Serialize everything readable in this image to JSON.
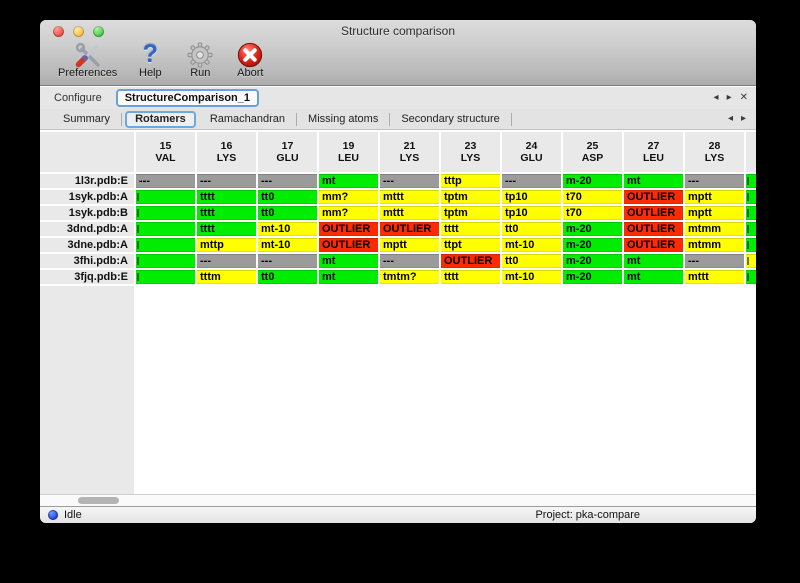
{
  "window": {
    "title": "Structure comparison"
  },
  "toolbar": {
    "items": [
      {
        "label": "Preferences",
        "icon": "tools-icon"
      },
      {
        "label": "Help",
        "icon": "question-icon"
      },
      {
        "label": "Run",
        "icon": "gear-icon"
      },
      {
        "label": "Abort",
        "icon": "stop-x-icon"
      }
    ]
  },
  "configure": {
    "label": "Configure",
    "tab_label": "StructureComparison_1"
  },
  "tabs": {
    "items": [
      "Summary",
      "Rotamers",
      "Ramachandran",
      "Missing atoms",
      "Secondary structure"
    ],
    "selected_index": 1
  },
  "icons": {
    "prev": "◂",
    "next": "▸",
    "close": "✕",
    "help_glyph": "?"
  },
  "colors": {
    "green": "#00EC00",
    "yellow": "#FFFF00",
    "red": "#FF2B00",
    "gray": "#9B9B9B",
    "accent_blue": "#67A1DC"
  },
  "table": {
    "columns": [
      {
        "num": "15",
        "res": "VAL"
      },
      {
        "num": "16",
        "res": "LYS"
      },
      {
        "num": "17",
        "res": "GLU"
      },
      {
        "num": "19",
        "res": "LEU"
      },
      {
        "num": "21",
        "res": "LYS"
      },
      {
        "num": "23",
        "res": "LYS"
      },
      {
        "num": "24",
        "res": "GLU"
      },
      {
        "num": "25",
        "res": "ASP"
      },
      {
        "num": "27",
        "res": "LEU"
      },
      {
        "num": "28",
        "res": "LYS"
      }
    ],
    "rows": [
      {
        "label": "1l3r.pdb:E",
        "cells": [
          {
            "t": "---",
            "c": "gray"
          },
          {
            "t": "---",
            "c": "gray"
          },
          {
            "t": "---",
            "c": "gray"
          },
          {
            "t": "mt",
            "c": "green"
          },
          {
            "t": "---",
            "c": "gray"
          },
          {
            "t": "tttp",
            "c": "yellow"
          },
          {
            "t": "---",
            "c": "gray"
          },
          {
            "t": "m-20",
            "c": "green"
          },
          {
            "t": "mt",
            "c": "green"
          },
          {
            "t": "---",
            "c": "gray"
          }
        ],
        "sliver": "green"
      },
      {
        "label": "1syk.pdb:A",
        "cells": [
          {
            "t": "",
            "c": "green",
            "clip": true
          },
          {
            "t": "tttt",
            "c": "green"
          },
          {
            "t": "tt0",
            "c": "green"
          },
          {
            "t": "mm?",
            "c": "yellow"
          },
          {
            "t": "mttt",
            "c": "yellow"
          },
          {
            "t": "tptm",
            "c": "yellow"
          },
          {
            "t": "tp10",
            "c": "yellow"
          },
          {
            "t": "t70",
            "c": "yellow"
          },
          {
            "t": "OUTLIER",
            "c": "red"
          },
          {
            "t": "mptt",
            "c": "yellow"
          }
        ],
        "sliver": "green"
      },
      {
        "label": "1syk.pdb:B",
        "cells": [
          {
            "t": "",
            "c": "green",
            "clip": true
          },
          {
            "t": "tttt",
            "c": "green"
          },
          {
            "t": "tt0",
            "c": "green"
          },
          {
            "t": "mm?",
            "c": "yellow"
          },
          {
            "t": "mttt",
            "c": "yellow"
          },
          {
            "t": "tptm",
            "c": "yellow"
          },
          {
            "t": "tp10",
            "c": "yellow"
          },
          {
            "t": "t70",
            "c": "yellow"
          },
          {
            "t": "OUTLIER",
            "c": "red"
          },
          {
            "t": "mptt",
            "c": "yellow"
          }
        ],
        "sliver": "green"
      },
      {
        "label": "3dnd.pdb:A",
        "cells": [
          {
            "t": "",
            "c": "green",
            "clip": true
          },
          {
            "t": "tttt",
            "c": "green"
          },
          {
            "t": "mt-10",
            "c": "yellow"
          },
          {
            "t": "OUTLIER",
            "c": "red"
          },
          {
            "t": "OUTLIER",
            "c": "red"
          },
          {
            "t": "tttt",
            "c": "yellow"
          },
          {
            "t": "tt0",
            "c": "yellow"
          },
          {
            "t": "m-20",
            "c": "green"
          },
          {
            "t": "OUTLIER",
            "c": "red"
          },
          {
            "t": "mtmm",
            "c": "yellow"
          }
        ],
        "sliver": "green"
      },
      {
        "label": "3dne.pdb:A",
        "cells": [
          {
            "t": "",
            "c": "green",
            "clip": true
          },
          {
            "t": "mttp",
            "c": "yellow"
          },
          {
            "t": "mt-10",
            "c": "yellow"
          },
          {
            "t": "OUTLIER",
            "c": "red"
          },
          {
            "t": "mptt",
            "c": "yellow"
          },
          {
            "t": "ttpt",
            "c": "yellow"
          },
          {
            "t": "mt-10",
            "c": "yellow"
          },
          {
            "t": "m-20",
            "c": "green"
          },
          {
            "t": "OUTLIER",
            "c": "red"
          },
          {
            "t": "mtmm",
            "c": "yellow"
          }
        ],
        "sliver": "green"
      },
      {
        "label": "3fhi.pdb:A",
        "cells": [
          {
            "t": "",
            "c": "green",
            "clip": true
          },
          {
            "t": "---",
            "c": "gray"
          },
          {
            "t": "---",
            "c": "gray"
          },
          {
            "t": "mt",
            "c": "green"
          },
          {
            "t": "---",
            "c": "gray"
          },
          {
            "t": "OUTLIER",
            "c": "red"
          },
          {
            "t": "tt0",
            "c": "yellow"
          },
          {
            "t": "m-20",
            "c": "green"
          },
          {
            "t": "mt",
            "c": "green"
          },
          {
            "t": "---",
            "c": "gray"
          }
        ],
        "sliver": "yellow"
      },
      {
        "label": "3fjq.pdb:E",
        "cells": [
          {
            "t": "",
            "c": "green",
            "clip": true
          },
          {
            "t": "tttm",
            "c": "yellow"
          },
          {
            "t": "tt0",
            "c": "green"
          },
          {
            "t": "mt",
            "c": "green"
          },
          {
            "t": "tmtm?",
            "c": "yellow"
          },
          {
            "t": "tttt",
            "c": "yellow"
          },
          {
            "t": "mt-10",
            "c": "yellow"
          },
          {
            "t": "m-20",
            "c": "green"
          },
          {
            "t": "mt",
            "c": "green"
          },
          {
            "t": "mttt",
            "c": "yellow"
          }
        ],
        "sliver": "green"
      }
    ]
  },
  "statusbar": {
    "status_label": "Idle",
    "project_label": "Project: pka-compare"
  }
}
